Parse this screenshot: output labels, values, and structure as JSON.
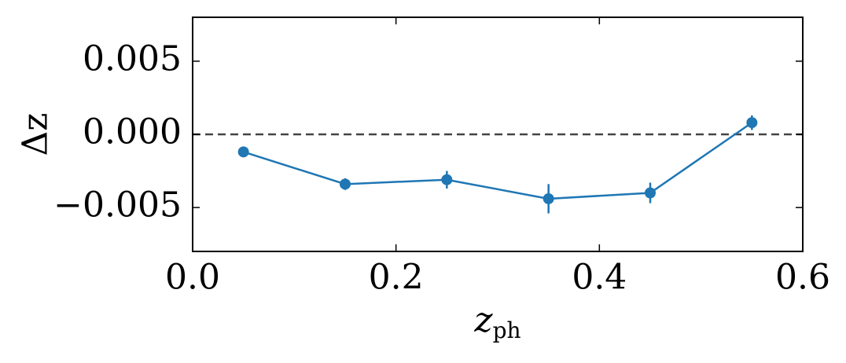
{
  "chart_data": {
    "type": "line",
    "x_label": {
      "symbol": "z",
      "subscript": "ph"
    },
    "y_label": "Δz",
    "x": [
      0.05,
      0.15,
      0.25,
      0.35,
      0.45,
      0.55
    ],
    "series": [
      {
        "color": "#1f77b4",
        "values": [
          -0.0012,
          -0.0034,
          -0.0031,
          -0.0044,
          -0.004,
          0.0008
        ],
        "errors": [
          0.0003,
          0.0004,
          0.0006,
          0.001,
          0.0007,
          0.0005
        ]
      }
    ],
    "reference_line": {
      "value": 0,
      "color": "#444444",
      "style": "dashed"
    },
    "xlim": [
      0,
      0.6
    ],
    "xticks": [
      {
        "value": 0,
        "label": "0.0"
      },
      0.2,
      0.4,
      0.6
    ],
    "ylim": [
      -0.008,
      0.008
    ],
    "yticks": [
      {
        "value": -0.005,
        "label": "−0.005"
      },
      {
        "value": 0,
        "label": "0.000"
      },
      {
        "value": 0.005,
        "label": "0.005"
      }
    ],
    "grid": false
  }
}
